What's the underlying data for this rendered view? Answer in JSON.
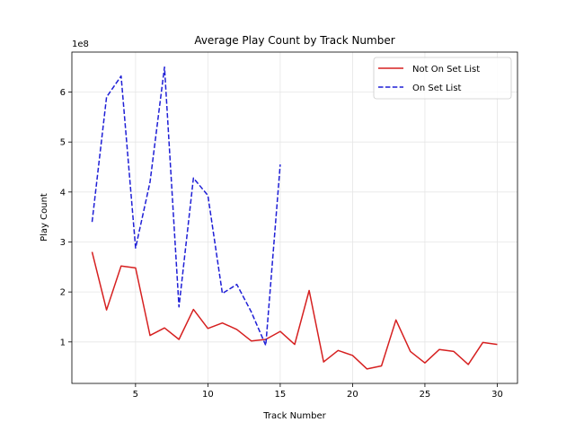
{
  "chart_data": {
    "type": "line",
    "title": "Average Play Count by Track Number",
    "xlabel": "Track Number",
    "ylabel": "Play Count",
    "y_offset_label": "1e8",
    "xlim": [
      0.6,
      31.4
    ],
    "ylim": [
      0.17,
      6.8
    ],
    "y_multiplier": 100000000,
    "xticks": [
      5,
      10,
      15,
      20,
      25,
      30
    ],
    "yticks": [
      1,
      2,
      3,
      4,
      5,
      6
    ],
    "grid": true,
    "legend_position": "top-right",
    "series": [
      {
        "name": "Not On Set List",
        "color": "#d62020",
        "style": "solid",
        "x": [
          2,
          3,
          4,
          5,
          6,
          7,
          8,
          9,
          10,
          11,
          12,
          13,
          14,
          15,
          16,
          17,
          18,
          19,
          20,
          21,
          22,
          23,
          24,
          25,
          26,
          27,
          28,
          29,
          30
        ],
        "y": [
          2.8,
          1.64,
          2.52,
          2.48,
          1.13,
          1.28,
          1.05,
          1.65,
          1.27,
          1.38,
          1.25,
          1.02,
          1.05,
          1.21,
          0.95,
          2.03,
          0.6,
          0.83,
          0.73,
          0.46,
          0.52,
          1.44,
          0.81,
          0.58,
          0.85,
          0.81,
          0.55,
          0.99,
          0.95
        ]
      },
      {
        "name": "On Set List",
        "color": "#1f1fd6",
        "style": "dashed",
        "x": [
          2,
          3,
          4,
          5,
          6,
          7,
          8,
          9,
          10,
          11,
          12,
          13,
          14,
          15
        ],
        "y": [
          3.4,
          5.9,
          6.32,
          2.88,
          4.2,
          6.5,
          1.7,
          4.28,
          3.93,
          1.97,
          2.15,
          1.6,
          0.93,
          4.55
        ]
      }
    ]
  }
}
